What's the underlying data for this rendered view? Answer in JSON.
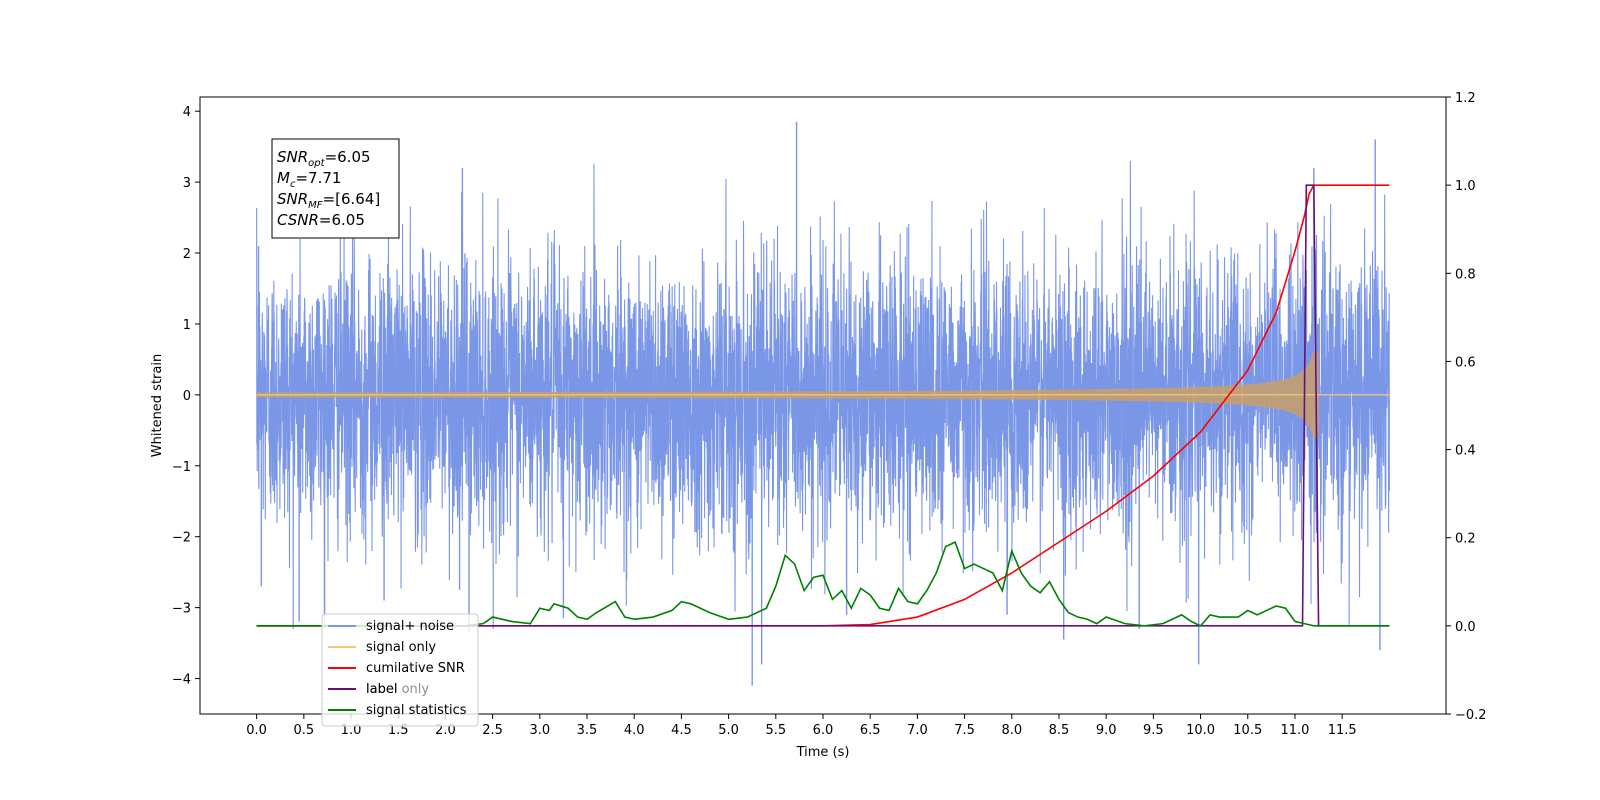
{
  "chart_data": {
    "type": "line",
    "xlabel": "Time (s)",
    "ylabel": "Whitened strain",
    "xlim": [
      -0.6,
      12.6
    ],
    "ylim": [
      -4.5,
      4.2
    ],
    "y2lim": [
      -0.2,
      1.2
    ],
    "x_ticks": [
      "0.0",
      "0.5",
      "1.0",
      "1.5",
      "2.0",
      "2.5",
      "3.0",
      "3.5",
      "4.0",
      "4.5",
      "5.0",
      "5.5",
      "6.0",
      "6.5",
      "7.0",
      "7.5",
      "8.0",
      "8.5",
      "9.0",
      "9.5",
      "10.0",
      "10.5",
      "11.0",
      "11.5"
    ],
    "y_ticks": [
      "4",
      "3",
      "2",
      "1",
      "0",
      "−1",
      "−2",
      "−3",
      "−4"
    ],
    "y2_ticks": [
      "1.2",
      "1.0",
      "0.8",
      "0.6",
      "0.4",
      "0.2",
      "0.0",
      "−0.2"
    ],
    "annotation": {
      "lines": [
        {
          "sym": "SNR",
          "sub": "opt",
          "value": "=6.05"
        },
        {
          "sym": "M",
          "sub": "c",
          "value": "=7.71"
        },
        {
          "sym": "SNR",
          "sub": "MF",
          "value": "=[6.64]"
        },
        {
          "sym": "CSNR",
          "sub": "",
          "value": "=6.05"
        }
      ]
    },
    "legend": {
      "position": "lower-left",
      "entries": [
        {
          "label": "signal+ noise",
          "color": "#7a96e6"
        },
        {
          "label": "signal only",
          "color": "#f5c77a"
        },
        {
          "label": "cumilative SNR",
          "color": "#ff0000"
        },
        {
          "label": "label",
          "color": "#6a0f78"
        },
        {
          "label": "signal statistics",
          "color": "#008000"
        }
      ],
      "hidden_label": "label only"
    },
    "series": [
      {
        "name": "signal+ noise",
        "axis": "left",
        "color": "#7a96e6",
        "x_range": [
          0.0,
          12.0
        ],
        "description_values": {
          "noise_std": 1.0,
          "spikes": [
            [
              0.02,
              2.1
            ],
            [
              0.05,
              -2.7
            ],
            [
              0.45,
              -3.2
            ],
            [
              0.72,
              -3.15
            ],
            [
              1.35,
              -2.9
            ],
            [
              2.15,
              -2.75
            ],
            [
              2.18,
              3.2
            ],
            [
              2.25,
              -3.35
            ],
            [
              3.25,
              -3.15
            ],
            [
              5.25,
              -4.1
            ],
            [
              5.35,
              -3.8
            ],
            [
              5.72,
              3.85
            ],
            [
              6.25,
              -3.1
            ],
            [
              7.95,
              -3.1
            ],
            [
              8.55,
              -3.45
            ],
            [
              9.35,
              -3.3
            ],
            [
              9.98,
              -3.8
            ],
            [
              11.2,
              3.2
            ],
            [
              11.85,
              3.6
            ],
            [
              11.9,
              -3.6
            ]
          ]
        }
      },
      {
        "name": "signal only",
        "axis": "left",
        "color": "#f5c77a",
        "chirp_end": 11.25,
        "peak_amplitude": 0.6
      },
      {
        "name": "cumilative SNR",
        "axis": "right",
        "color": "#ff0000",
        "x": [
          0.0,
          6.0,
          6.5,
          7.0,
          7.5,
          8.0,
          8.5,
          9.0,
          9.5,
          10.0,
          10.5,
          10.8,
          11.0,
          11.1,
          11.15,
          11.2,
          12.0
        ],
        "y": [
          0.0,
          0.0,
          0.003,
          0.02,
          0.06,
          0.12,
          0.19,
          0.26,
          0.34,
          0.44,
          0.58,
          0.71,
          0.85,
          0.93,
          0.98,
          1.0,
          1.0
        ]
      },
      {
        "name": "label",
        "axis": "right",
        "color": "#6a0f78",
        "x": [
          0.0,
          11.08,
          11.12,
          11.2,
          11.25,
          11.26,
          12.0
        ],
        "y": [
          0.0,
          0.0,
          1.0,
          1.0,
          0.0,
          0.0,
          0.0
        ]
      },
      {
        "name": "signal statistics",
        "axis": "right",
        "color": "#008000",
        "x": [
          0.0,
          2.2,
          2.4,
          2.5,
          2.7,
          2.9,
          3.0,
          3.1,
          3.15,
          3.3,
          3.4,
          3.5,
          3.6,
          3.8,
          3.9,
          4.0,
          4.2,
          4.4,
          4.5,
          4.6,
          4.8,
          5.0,
          5.2,
          5.4,
          5.5,
          5.6,
          5.7,
          5.8,
          5.9,
          6.0,
          6.1,
          6.2,
          6.3,
          6.4,
          6.5,
          6.6,
          6.7,
          6.8,
          6.9,
          7.0,
          7.1,
          7.2,
          7.3,
          7.4,
          7.5,
          7.6,
          7.7,
          7.8,
          7.9,
          8.0,
          8.1,
          8.2,
          8.3,
          8.4,
          8.5,
          8.6,
          8.7,
          8.8,
          8.9,
          9.0,
          9.2,
          9.4,
          9.6,
          9.8,
          9.9,
          10.0,
          10.1,
          10.2,
          10.4,
          10.5,
          10.6,
          10.7,
          10.8,
          10.9,
          11.0,
          11.1,
          11.2,
          11.3,
          12.0
        ],
        "y": [
          0.0,
          0.0,
          0.005,
          0.02,
          0.01,
          0.005,
          0.04,
          0.035,
          0.05,
          0.04,
          0.02,
          0.015,
          0.03,
          0.055,
          0.02,
          0.015,
          0.02,
          0.035,
          0.055,
          0.05,
          0.03,
          0.015,
          0.02,
          0.04,
          0.09,
          0.16,
          0.14,
          0.08,
          0.11,
          0.115,
          0.06,
          0.08,
          0.04,
          0.085,
          0.07,
          0.04,
          0.035,
          0.085,
          0.055,
          0.05,
          0.08,
          0.12,
          0.18,
          0.19,
          0.13,
          0.14,
          0.13,
          0.12,
          0.08,
          0.17,
          0.12,
          0.09,
          0.075,
          0.1,
          0.06,
          0.03,
          0.02,
          0.015,
          0.005,
          0.02,
          0.005,
          0.0,
          0.005,
          0.025,
          0.01,
          0.0,
          0.025,
          0.02,
          0.02,
          0.035,
          0.025,
          0.035,
          0.045,
          0.04,
          0.01,
          0.005,
          0.0,
          0.0,
          0.0
        ]
      }
    ]
  }
}
